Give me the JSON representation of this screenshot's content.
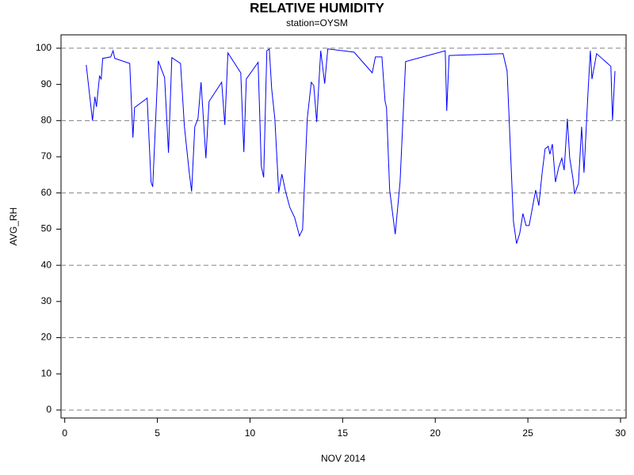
{
  "chart_data": {
    "type": "line",
    "title": "RELATIVE HUMIDITY",
    "subtitle": "station=OYSM",
    "xlabel": "NOV 2014",
    "ylabel": "AVG_RH",
    "color": "#0000ff",
    "grid": true,
    "xlim": [
      -0.2,
      30.3
    ],
    "ylim": [
      -2.2,
      103.7
    ],
    "xticks": [
      0,
      5,
      10,
      15,
      20,
      25,
      30
    ],
    "yticks": [
      0,
      10,
      20,
      30,
      40,
      50,
      60,
      70,
      80,
      90,
      100
    ],
    "gridlines": [
      0,
      20,
      40,
      60,
      80,
      100
    ],
    "x": [
      1.16,
      1.5,
      1.63,
      1.71,
      1.88,
      1.97,
      2.05,
      2.48,
      2.61,
      2.7,
      3.51,
      3.68,
      3.77,
      4.45,
      4.66,
      4.75,
      5.05,
      5.39,
      5.6,
      5.78,
      6.25,
      6.46,
      6.72,
      6.85,
      7.02,
      7.19,
      7.36,
      7.62,
      7.79,
      8.47,
      8.64,
      8.81,
      9.5,
      9.67,
      9.8,
      10.44,
      10.61,
      10.74,
      10.91,
      11.04,
      11.17,
      11.34,
      11.55,
      11.72,
      11.9,
      12.15,
      12.41,
      12.67,
      12.84,
      13.09,
      13.31,
      13.44,
      13.6,
      13.82,
      14.03,
      14.2,
      15.62,
      16.6,
      16.77,
      17.12,
      17.29,
      17.37,
      17.54,
      17.84,
      18.1,
      18.4,
      20.54,
      20.62,
      20.75,
      23.66,
      23.88,
      24.22,
      24.39,
      24.56,
      24.73,
      24.9,
      25.07,
      25.42,
      25.59,
      25.76,
      25.93,
      26.1,
      26.19,
      26.32,
      26.49,
      26.66,
      26.83,
      26.96,
      27.13,
      27.26,
      27.43,
      27.52,
      27.73,
      27.9,
      28.03,
      28.24,
      28.37,
      28.46,
      28.71,
      29.48,
      29.57,
      29.7
    ],
    "values": [
      95.4,
      80,
      86.6,
      83.8,
      92.3,
      91.5,
      97.2,
      97.6,
      99.3,
      97.2,
      95.8,
      75.3,
      83.6,
      86.2,
      63,
      61.7,
      96.5,
      91.9,
      71.1,
      97.4,
      95.8,
      78.3,
      65.6,
      60.4,
      78.3,
      80.5,
      90.6,
      69.6,
      85.3,
      90.6,
      78.8,
      98.7,
      93.2,
      71.3,
      91.5,
      96.1,
      67.4,
      64.3,
      99.3,
      99.8,
      88.8,
      80.5,
      60.2,
      65.2,
      60.8,
      56,
      53.2,
      48.1,
      49.9,
      80.5,
      90.6,
      89.7,
      79.6,
      99.3,
      90.2,
      99.8,
      98.9,
      93.2,
      97.6,
      97.6,
      85.3,
      83.6,
      60.8,
      48.6,
      63,
      96.3,
      99.3,
      82.7,
      98,
      98.5,
      93.7,
      52.1,
      46,
      48.8,
      54.3,
      51,
      51,
      60.8,
      56.5,
      65.2,
      72.2,
      72.9,
      70.7,
      73.5,
      63,
      67,
      69.6,
      66.3,
      80.5,
      69.6,
      64.1,
      59.7,
      62.6,
      78.3,
      65.6,
      87.1,
      99.3,
      91.5,
      98.5,
      95,
      80.1,
      93.7
    ]
  }
}
